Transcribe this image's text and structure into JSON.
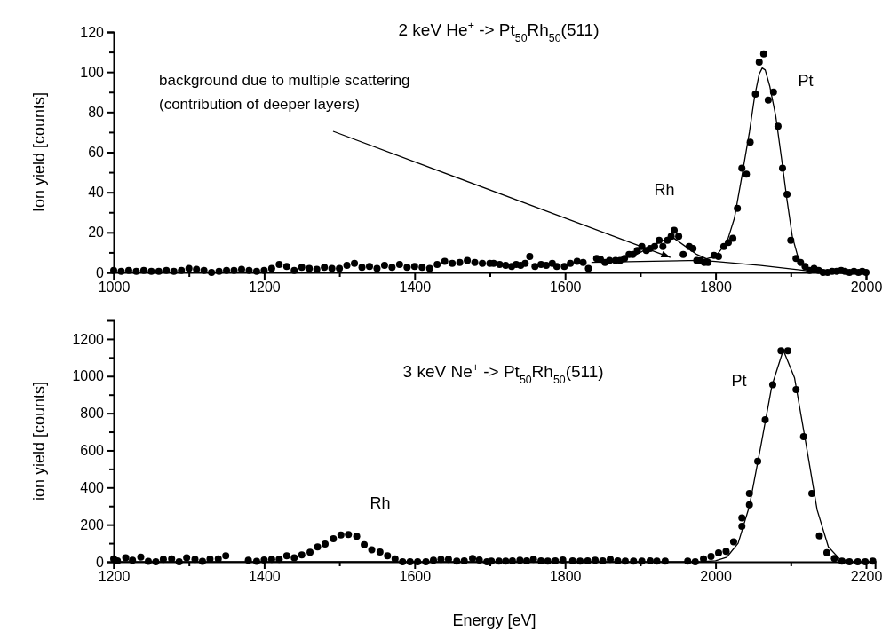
{
  "chart_data": [
    {
      "type": "scatter",
      "title": "2 keV He$^{+}$ -> Pt$_{50}$Rh$_{50}$(511)",
      "ylabel": "Ion yield [counts]",
      "xlim": [
        1000,
        2000
      ],
      "ylim": [
        0,
        120
      ],
      "xticks": [
        1000,
        {
          "value": 1100,
          "label": null
        },
        1200,
        {
          "value": 1300,
          "label": null
        },
        1400,
        {
          "value": 1500,
          "label": null
        },
        1600,
        {
          "value": 1700,
          "label": null
        },
        1800,
        {
          "value": 1900,
          "label": null
        },
        2000
      ],
      "yticks": [
        0,
        {
          "value": 10,
          "label": null
        },
        20,
        {
          "value": 30,
          "label": null
        },
        40,
        {
          "value": 50,
          "label": null
        },
        60,
        {
          "value": 70,
          "label": null
        },
        80,
        {
          "value": 90,
          "label": null
        },
        100,
        {
          "value": 110,
          "label": null
        },
        120
      ],
      "series": [
        {
          "marker": "circle",
          "color": "#000000",
          "x": [
            1000,
            1010,
            1020,
            1030,
            1040,
            1050,
            1060,
            1070,
            1080,
            1090,
            1100,
            1110,
            1120,
            1130,
            1140,
            1150,
            1160,
            1170,
            1180,
            1190,
            1200,
            1210,
            1220,
            1230,
            1240,
            1250,
            1260,
            1270,
            1280,
            1290,
            1300,
            1310,
            1320,
            1330,
            1340,
            1350,
            1360,
            1370,
            1380,
            1390,
            1400,
            1410,
            1420,
            1430,
            1440,
            1450,
            1460,
            1470,
            1480,
            1490,
            1500,
            1505,
            1513,
            1521,
            1529,
            1535,
            1541,
            1547,
            1553,
            1560,
            1568,
            1575,
            1583,
            1589,
            1599,
            1607,
            1616,
            1624,
            1631,
            1642,
            1647,
            1653,
            1659,
            1667,
            1673,
            1679,
            1685,
            1690,
            1696,
            1702,
            1708,
            1713,
            1719,
            1725,
            1730,
            1736,
            1741,
            1745,
            1751,
            1757,
            1765,
            1770,
            1775,
            1780,
            1785,
            1790,
            1798,
            1804,
            1811,
            1817,
            1823,
            1829,
            1835,
            1841,
            1846,
            1853,
            1858,
            1864,
            1870,
            1877,
            1883,
            1889,
            1895,
            1900,
            1907,
            1913,
            1919,
            1925,
            1931,
            1937,
            1943,
            1949,
            1955,
            1961,
            1967,
            1972,
            1978,
            1984,
            1990,
            1995,
            2000
          ],
          "values": [
            1,
            0.5,
            1,
            0.5,
            1,
            0.5,
            0.5,
            1,
            0.5,
            1,
            2,
            1.5,
            1,
            0,
            0.5,
            1,
            1,
            1.5,
            1,
            0.5,
            1,
            2,
            4,
            3,
            1,
            2.5,
            2,
            1.5,
            2.5,
            2,
            2,
            3.5,
            4.5,
            2.5,
            3,
            2,
            3.5,
            2.5,
            4,
            2.5,
            3,
            2.5,
            2,
            4,
            5.5,
            4.5,
            5,
            6,
            5,
            4.5,
            4.5,
            4.5,
            4,
            3.5,
            3,
            4,
            3.5,
            4.5,
            8,
            3,
            4,
            3.5,
            4.5,
            3,
            3,
            4.5,
            5.5,
            5,
            2,
            7,
            6.5,
            5,
            6,
            6,
            6,
            7,
            9,
            9,
            11,
            13,
            11,
            12,
            13,
            16,
            13,
            16,
            18,
            21,
            18,
            9,
            13,
            12,
            6,
            6,
            5,
            5,
            8.5,
            8,
            13,
            15,
            17,
            32,
            52,
            49,
            65,
            89,
            105,
            109,
            86,
            90,
            73,
            52,
            39,
            16,
            7,
            5,
            3,
            1,
            2,
            1,
            0,
            0,
            0.5,
            0.5,
            1,
            0.5,
            0,
            0.5,
            0,
            0.5,
            0
          ]
        },
        {
          "type": "line",
          "color": "#000000",
          "x": [
            1635,
            1700,
            1780,
            1800,
            1860,
            1930
          ],
          "values": [
            5,
            5.5,
            6,
            5.5,
            3.5,
            0.5
          ]
        },
        {
          "type": "line",
          "color": "#000000",
          "x": [
            1690,
            1710,
            1730,
            1745,
            1760,
            1775,
            1790
          ],
          "values": [
            8,
            12,
            16,
            17,
            13,
            9,
            6.5
          ]
        },
        {
          "type": "line",
          "color": "#000000",
          "x": [
            1780,
            1800,
            1815,
            1825,
            1835,
            1845,
            1852,
            1858,
            1862,
            1866,
            1872,
            1880,
            1888,
            1895,
            1902,
            1910,
            1920,
            1935
          ],
          "values": [
            6,
            8,
            15,
            27,
            48,
            70,
            88,
            99,
            102,
            101,
            93,
            78,
            56,
            36,
            18,
            7,
            2,
            0.5
          ]
        }
      ],
      "annotations": [
        "Rh",
        "Pt",
        {
          "text": "background due to multiple scattering\n(contribution of deeper layers)",
          "x": 1740,
          "y": 7.5
        }
      ]
    },
    {
      "type": "scatter",
      "title": "3 keV Ne$^{+}$ -> Pt$_{50}$Rh$_{50}$(511)",
      "xlabel": "Energy [eV]",
      "ylabel": "ion yield [counts]",
      "xlim": [
        1200,
        2212
      ],
      "ylim": [
        0,
        1300
      ],
      "xticks": [
        1200,
        {
          "value": 1300,
          "label": null
        },
        1400,
        {
          "value": 1500,
          "label": null
        },
        1600,
        {
          "value": 1700,
          "label": null
        },
        1800,
        {
          "value": 1900,
          "label": null
        },
        2000,
        {
          "value": 2100,
          "label": null
        },
        2200
      ],
      "yticks": [
        0,
        {
          "value": 100,
          "label": null
        },
        200,
        {
          "value": 300,
          "label": null
        },
        400,
        {
          "value": 500,
          "label": null
        },
        600,
        {
          "value": 700,
          "label": null
        },
        800,
        {
          "value": 900,
          "label": null
        },
        1000,
        {
          "value": 1100,
          "label": null
        },
        1200
      ],
      "series": [
        {
          "marker": "circle",
          "color": "#000000",
          "x": [
            1200,
            1205,
            1216,
            1225,
            1236,
            1246,
            1256,
            1266,
            1277,
            1287,
            1297,
            1308,
            1318,
            1328,
            1339,
            1349,
            1379,
            1390,
            1400,
            1410,
            1420,
            1430,
            1440,
            1450,
            1461,
            1471,
            1481,
            1492,
            1502,
            1512,
            1523,
            1533,
            1543,
            1554,
            1564,
            1574,
            1584,
            1594,
            1604,
            1615,
            1625,
            1635,
            1645,
            1656,
            1666,
            1677,
            1686,
            1696,
            1702,
            1712,
            1721,
            1730,
            1740,
            1749,
            1758,
            1768,
            1777,
            1787,
            1797,
            1810,
            1820,
            1830,
            1840,
            1850,
            1860,
            1870,
            1880,
            1891,
            1902,
            1913,
            1922,
            1933,
            1963,
            1973,
            1984,
            1994,
            2004,
            2014,
            2024,
            2035,
            2035,
            2045,
            2045,
            2056,
            2066,
            2076,
            2087,
            2096,
            2107,
            2117,
            2128,
            2138,
            2148,
            2158,
            2168,
            2178,
            2189,
            2199,
            2209
          ],
          "values": [
            16,
            5,
            21,
            8,
            25,
            2,
            0,
            13,
            16,
            0,
            21,
            13,
            2,
            14,
            16,
            32,
            8,
            2,
            10,
            13,
            13,
            32,
            21,
            37,
            51,
            80,
            96,
            124,
            145,
            147,
            137,
            92,
            64,
            53,
            32,
            16,
            0,
            0,
            0,
            0,
            8,
            13,
            13,
            3,
            5,
            18,
            10,
            0,
            3,
            3,
            3,
            5,
            8,
            5,
            13,
            5,
            3,
            5,
            10,
            5,
            3,
            5,
            8,
            5,
            13,
            5,
            3,
            3,
            3,
            5,
            3,
            3,
            3,
            0,
            16,
            29,
            48,
            56,
            108,
            191,
            236,
            307,
            368,
            541,
            765,
            953,
            1136,
            1136,
            927,
            674,
            368,
            140,
            49,
            18,
            3,
            0,
            0,
            0,
            3
          ]
        },
        {
          "type": "line",
          "color": "#000000",
          "x": [
            1200,
            1980,
            2000,
            2015,
            2030,
            2045,
            2060,
            2075,
            2090,
            2105,
            2120,
            2135,
            2150,
            2165,
            2180,
            2210
          ],
          "values": [
            0,
            0,
            5,
            25,
            100,
            300,
            620,
            950,
            1140,
            990,
            640,
            280,
            80,
            15,
            0,
            0
          ]
        }
      ],
      "annotations": [
        "Rh",
        "Pt"
      ]
    }
  ]
}
